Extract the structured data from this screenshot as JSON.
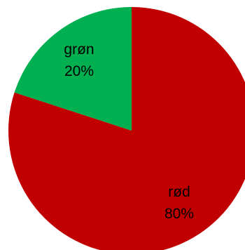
{
  "chart_data": {
    "type": "pie",
    "title": "",
    "slices": [
      {
        "label": "rød",
        "value": 80,
        "value_label": "80%",
        "color": "#c00000"
      },
      {
        "label": "grøn",
        "value": 20,
        "value_label": "20%",
        "color": "#00b050"
      }
    ],
    "start_angle": "12 o'clock",
    "direction": "clockwise",
    "legend": "none",
    "labels": "inside slices"
  }
}
